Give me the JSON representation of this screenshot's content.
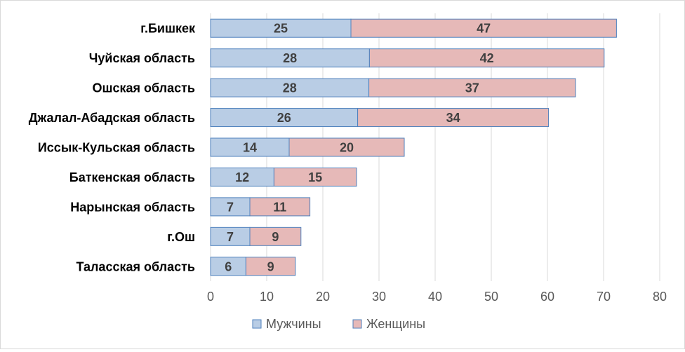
{
  "chart_data": {
    "type": "bar",
    "orientation": "horizontal",
    "stacked": true,
    "categories": [
      "г.Бишкек",
      "Чуйская область",
      "Ошская область",
      "Джалал-Абадская  область",
      "Иссык-Кульская область",
      "Баткенская область",
      "Нарынская область",
      "г.Ош",
      "Таласская область"
    ],
    "series": [
      {
        "name": "Мужчины",
        "color": "#b9cde5",
        "border": "#4f81bd",
        "values": [
          25,
          28,
          28,
          26,
          14,
          12,
          7,
          7,
          6
        ],
        "plotted": [
          25,
          28.3,
          28.2,
          26.2,
          14,
          11.3,
          7,
          7,
          6.3
        ]
      },
      {
        "name": "Женщины",
        "color": "#e6b9b8",
        "border": "#4f81bd",
        "values": [
          47,
          42,
          37,
          34,
          20,
          15,
          11,
          9,
          9
        ],
        "plotted": [
          47.3,
          41.8,
          36.8,
          34,
          20.5,
          14.7,
          10.7,
          9.1,
          8.8
        ]
      }
    ],
    "xlim": [
      0,
      80
    ],
    "xticks": [
      "0",
      "10",
      "20",
      "30",
      "40",
      "50",
      "60",
      "70",
      "80"
    ],
    "grid": true,
    "legend": {
      "position": "bottom"
    }
  }
}
